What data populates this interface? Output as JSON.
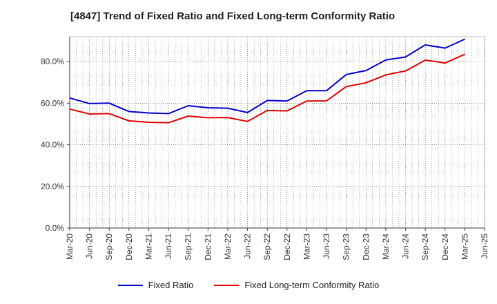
{
  "chart_data": {
    "type": "line",
    "title": "[4847]  Trend of Fixed Ratio and Fixed Long-term Conformity Ratio",
    "categories": [
      "Mar-20",
      "Jun-20",
      "Sep-20",
      "Dec-20",
      "Mar-21",
      "Jun-21",
      "Sep-21",
      "Dec-21",
      "Mar-22",
      "Jun-22",
      "Sep-22",
      "Dec-22",
      "Mar-23",
      "Jun-23",
      "Sep-23",
      "Dec-23",
      "Mar-24",
      "Jun-24",
      "Sep-24",
      "Dec-24",
      "Mar-25",
      "Jun-25"
    ],
    "ylim": [
      0,
      92
    ],
    "yticks": [
      "0.0%",
      "20.0%",
      "40.0%",
      "60.0%",
      "80.0%"
    ],
    "ytick_values": [
      0,
      20,
      40,
      60,
      80
    ],
    "grid": true,
    "legend_position": "bottom",
    "series": [
      {
        "name": "Fixed Ratio",
        "color": "#0000cc",
        "values": [
          62.5,
          59.8,
          60.0,
          56.0,
          55.3,
          55.0,
          58.8,
          57.8,
          57.6,
          55.5,
          61.3,
          61.0,
          66.0,
          66.0,
          73.8,
          75.7,
          80.8,
          82.2,
          88.0,
          86.5,
          90.8,
          null
        ]
      },
      {
        "name": "Fixed Long-term Conformity Ratio",
        "color": "#e00000",
        "values": [
          57.2,
          54.8,
          55.0,
          51.5,
          50.8,
          50.6,
          53.8,
          53.0,
          53.1,
          51.2,
          56.5,
          56.3,
          61.0,
          61.1,
          68.0,
          69.8,
          73.6,
          75.5,
          80.7,
          79.3,
          83.5,
          null
        ]
      }
    ]
  }
}
